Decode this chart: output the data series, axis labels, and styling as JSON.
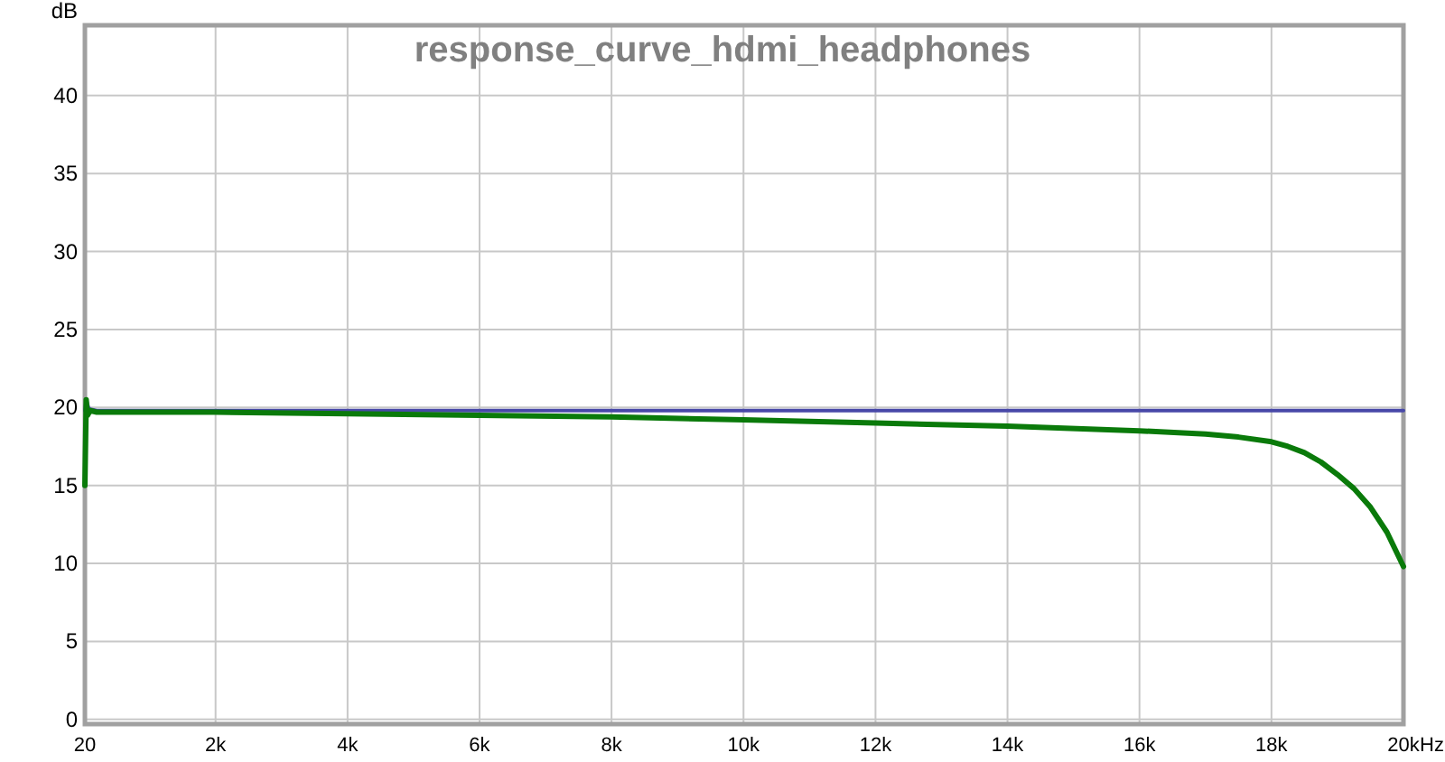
{
  "chart_data": {
    "type": "line",
    "title": "response_curve_hdmi_headphones",
    "ylabel": "dB",
    "xlim": [
      20,
      20000
    ],
    "ylim": [
      -0.3,
      44.5
    ],
    "xticks": [
      20,
      {
        "value": 2000,
        "label": "2k"
      },
      {
        "value": 4000,
        "label": "4k"
      },
      {
        "value": 6000,
        "label": "6k"
      },
      {
        "value": 8000,
        "label": "8k"
      },
      {
        "value": 10000,
        "label": "10k"
      },
      {
        "value": 12000,
        "label": "12k"
      },
      {
        "value": 14000,
        "label": "14k"
      },
      {
        "value": 16000,
        "label": "16k"
      },
      {
        "value": 18000,
        "label": "18k"
      },
      {
        "value": 20000,
        "label": "20k"
      }
    ],
    "xlabel": "Hz",
    "yticks": [
      0,
      5,
      10,
      15,
      20,
      25,
      30,
      35,
      40
    ],
    "grid": true,
    "series": [
      {
        "color": "#4848a8",
        "x": [
          20,
          40,
          80,
          200,
          20000
        ],
        "values": [
          19.8,
          20.5,
          19.9,
          19.8,
          19.8
        ]
      },
      {
        "color": "#0a7a0a",
        "x": [
          20,
          40,
          60,
          100,
          200,
          500,
          1000,
          2000,
          4000,
          6000,
          8000,
          10000,
          12000,
          14000,
          16000,
          17000,
          17500,
          18000,
          18250,
          18500,
          18750,
          19000,
          19250,
          19500,
          19750,
          20000
        ],
        "values": [
          15,
          20.5,
          19.5,
          19.8,
          19.7,
          19.7,
          19.7,
          19.7,
          19.6,
          19.5,
          19.4,
          19.2,
          19.0,
          18.8,
          18.5,
          18.3,
          18.1,
          17.8,
          17.5,
          17.1,
          16.5,
          15.7,
          14.8,
          13.6,
          12.0,
          9.8
        ]
      }
    ]
  }
}
